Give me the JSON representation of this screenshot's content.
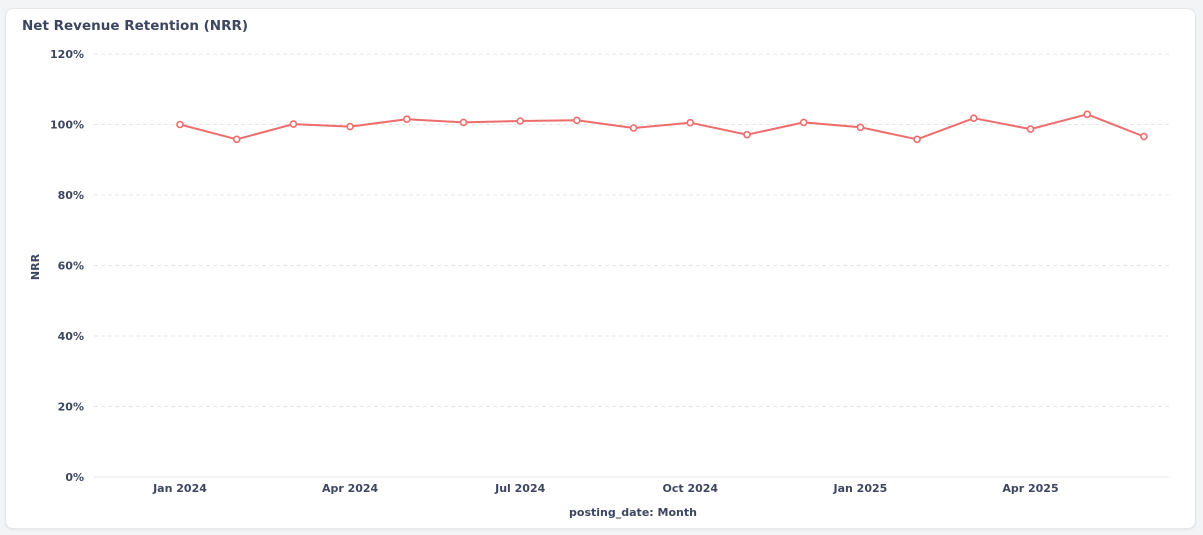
{
  "colors": {
    "series": "#ef6c6c",
    "grid": "#e5e7eb",
    "text": "#3d4661",
    "card_background": "#ffffff",
    "page_background": "#f3f4f6"
  },
  "chart_data": {
    "type": "line",
    "title": "Net Revenue Retention (NRR)",
    "xlabel": "posting_date: Month",
    "ylabel": "NRR",
    "ylim": [
      0,
      120
    ],
    "y_ticks": [
      "0%",
      "20%",
      "40%",
      "60%",
      "80%",
      "100%",
      "120%"
    ],
    "y_tick_values": [
      0,
      20,
      40,
      60,
      80,
      100,
      120
    ],
    "x_tick_labels": [
      {
        "label": "Jan 2024",
        "month": "2024-01"
      },
      {
        "label": "Apr 2024",
        "month": "2024-04"
      },
      {
        "label": "Jul 2024",
        "month": "2024-07"
      },
      {
        "label": "Oct 2024",
        "month": "2024-10"
      },
      {
        "label": "Jan 2025",
        "month": "2025-01"
      },
      {
        "label": "Apr 2025",
        "month": "2025-04"
      }
    ],
    "grid": true,
    "legend": "none",
    "x": [
      "2024-01",
      "2024-02",
      "2024-03",
      "2024-04",
      "2024-05",
      "2024-06",
      "2024-07",
      "2024-08",
      "2024-09",
      "2024-10",
      "2024-11",
      "2024-12",
      "2025-01",
      "2025-02",
      "2025-03",
      "2025-04",
      "2025-05",
      "2025-06"
    ],
    "series": [
      {
        "values": [
          100.0,
          95.8,
          100.1,
          99.4,
          101.5,
          100.6,
          101.0,
          101.2,
          99.0,
          100.5,
          97.1,
          100.6,
          99.2,
          95.8,
          101.8,
          98.7,
          102.9,
          96.6
        ]
      }
    ]
  }
}
